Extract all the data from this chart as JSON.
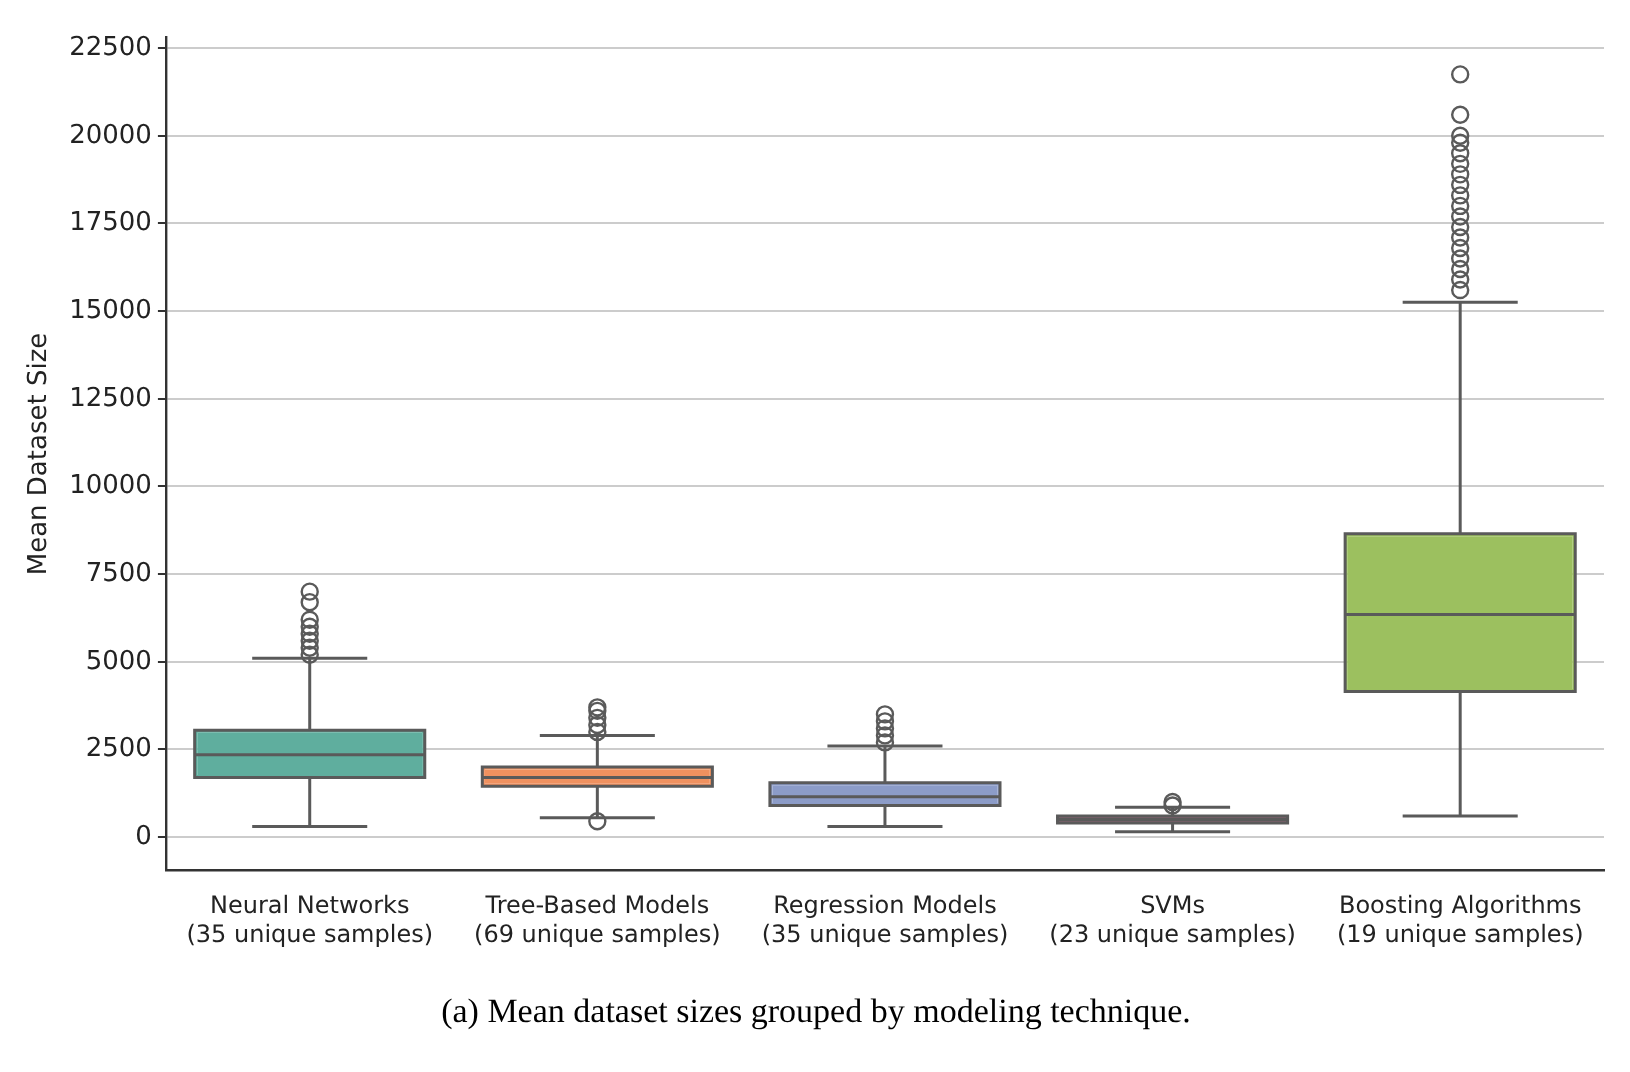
{
  "chart_data": {
    "type": "box",
    "ylabel": "Mean Dataset Size",
    "categories": [
      "Neural Networks\n(35 unique samples)",
      "Tree-Based Models\n(69 unique samples)",
      "Regression Models\n(35 unique samples)",
      "SVMs\n(23 unique samples)",
      "Boosting Algorithms\n(19 unique samples)"
    ],
    "colors": [
      "#5fae9e",
      "#f0915f",
      "#8c9cc8",
      "#8b6372",
      "#9cc05f"
    ],
    "boxes": [
      {
        "low": 300,
        "q1": 1700,
        "median": 2350,
        "q3": 3050,
        "high": 5100,
        "outliers": [
          5200,
          5400,
          5600,
          5800,
          6000,
          6200,
          6700,
          7000
        ]
      },
      {
        "low": 550,
        "q1": 1450,
        "median": 1700,
        "q3": 2000,
        "high": 2900,
        "outliers": [
          450,
          3000,
          3200,
          3400,
          3600,
          3700
        ]
      },
      {
        "low": 300,
        "q1": 900,
        "median": 1150,
        "q3": 1550,
        "high": 2600,
        "outliers": [
          2700,
          2900,
          3100,
          3300,
          3500
        ]
      },
      {
        "low": 150,
        "q1": 400,
        "median": 500,
        "q3": 600,
        "high": 850,
        "outliers": [
          900,
          1000
        ]
      },
      {
        "low": 600,
        "q1": 4150,
        "median": 6350,
        "q3": 8650,
        "high": 15250,
        "outliers": [
          15600,
          15900,
          16200,
          16500,
          16800,
          17100,
          17400,
          17700,
          18000,
          18300,
          18600,
          18900,
          19200,
          19500,
          19800,
          20000,
          20600,
          21750
        ]
      }
    ],
    "ylim": [
      -950,
      22800
    ],
    "yticks": [
      0,
      2500,
      5000,
      7500,
      10000,
      12500,
      15000,
      17500,
      20000,
      22500
    ],
    "grid": "y",
    "marker": "circle",
    "legend": false,
    "annotations": [
      "(a) Mean dataset sizes grouped by modeling technique."
    ]
  }
}
